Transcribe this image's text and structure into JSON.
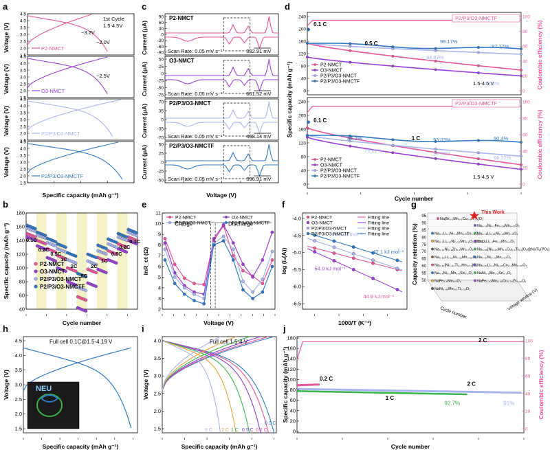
{
  "colors": {
    "p2": "#e8559b",
    "o3": "#9b3fd6",
    "p2p3o3": "#a8b4ee",
    "nmctf": "#2f78c4",
    "ce": "#e8559b",
    "band": "#f4f1c6",
    "green": "#3ab54a",
    "purple_full": "#8b3fd0"
  },
  "panels": {
    "a": {
      "letter": "a",
      "note_line1": "1st Cycle",
      "note_line2": "1.5-4.5V",
      "xlabel": "Specific capacity (mAh g⁻¹)",
      "ylabel": "Voltage (V)",
      "xticks": [
        "0",
        "50",
        "100",
        "150",
        "200"
      ],
      "yticks_top": [
        "4.5",
        "4.0",
        "3.5",
        "3.0",
        "2.5",
        "2.0",
        "1.5"
      ],
      "labels": [
        "P2-NMCT",
        "O3-NMCT",
        "P2/P3/O3-NMCT",
        "P2/P3/O3-NMCTF"
      ],
      "ann_32": "~3.2V",
      "ann_20": "~2.0V",
      "ann_25": "~2.5V"
    },
    "b": {
      "letter": "b",
      "xlabel": "Cycle number",
      "ylabel": "Specific capacity (mAh g⁻¹)",
      "xticks": [
        "0",
        "10",
        "20",
        "30",
        "40",
        "50"
      ],
      "yticks": [
        "40",
        "60",
        "80",
        "100",
        "120",
        "140",
        "160",
        "180"
      ],
      "rates": [
        "0.1C",
        "0.2C",
        "0.5C",
        "1C",
        "2C",
        "5C",
        "2C",
        "1C",
        "0.5C",
        "0.2C",
        "0.1C"
      ],
      "legend": [
        "P2-NMCT",
        "O3-NMCT",
        "P2/P3/O3-NMCT",
        "P2/P3/O3-NMCTF"
      ]
    },
    "c": {
      "letter": "c",
      "xlabel": "Voltage (V)",
      "ylabel": "Current (μA)",
      "xticks": [
        "1.5",
        "2.0",
        "2.5",
        "3.0",
        "3.5",
        "4.0",
        "4.5"
      ],
      "scan_rate": "Scan Rate: 0.05 mV s⁻¹",
      "subpanels": [
        {
          "name": "P2-NMCT",
          "polarization": "332.91 mV",
          "yticks": [
            "90",
            "60",
            "30",
            "0",
            "-30",
            "-60",
            "-90"
          ]
        },
        {
          "name": "O3-NMCT",
          "polarization": "661.52 mV",
          "yticks": [
            "50",
            "25",
            "0",
            "-25",
            "-50",
            "-75"
          ]
        },
        {
          "name": "P2/P3/O3-NMCT",
          "polarization": "498.14 mV",
          "yticks": [
            "70",
            "35",
            "0",
            "-35",
            "-70"
          ]
        },
        {
          "name": "P2/P3/O3-NMCTF",
          "polarization": "396.91 mV",
          "yticks": [
            "50",
            "25",
            "0",
            "-25",
            "-50"
          ]
        }
      ]
    },
    "d": {
      "letter": "d",
      "xlabel": "Cycle number",
      "ylabel": "Specific capacity (mAh g⁻¹)",
      "ylabel_right": "Coulombic efficiency (%)",
      "xticks": [
        "0",
        "50",
        "100",
        "150",
        "200"
      ],
      "top": {
        "rate_init": "0.1 C",
        "rate_main": "0.5 C",
        "ce_label": "P2/P3/O3-NMCTF",
        "window": "1.5-4.5 V",
        "pct": [
          "98.17%",
          "87.17%",
          "94.87%",
          "83.3%"
        ],
        "yticks": [
          "240",
          "200",
          "160",
          "120",
          "80",
          "40",
          "0"
        ],
        "ce_ticks": [
          "100",
          "80",
          "60",
          "40",
          "20",
          "0"
        ]
      },
      "bottom": {
        "rate_init": "0.1 C",
        "rate_main": "1 C",
        "ce_label": "P2/P3/O3-NMCTF",
        "window": "1.5-4.5 V",
        "pct": [
          "94.2%",
          "93.03%",
          "90.4%",
          "79.82%",
          "78.59%",
          "66.32%"
        ],
        "yticks": [
          "240",
          "200",
          "160",
          "120",
          "80",
          "40",
          "0"
        ],
        "ce_ticks": [
          "100",
          "80",
          "60",
          "40",
          "20",
          "0"
        ]
      },
      "legend": [
        "P2-NMCT",
        "O3-NMCT",
        "P2/P3/O3-NMCT",
        "P2/P3/O3-NMCTF"
      ]
    },
    "e": {
      "letter": "e",
      "xlabel": "Voltage (V)",
      "ylabel": "lnR_ct (Ω)",
      "xticks": [
        "2.5",
        "3.0",
        "3.5",
        "4.0",
        "4.5",
        "4.0",
        "3.5",
        "3.0",
        "2.5",
        "2.0",
        "1.5"
      ],
      "yticks": [
        "11",
        "10",
        "9",
        "8",
        "7",
        "6",
        "5",
        "4",
        "3",
        "2"
      ],
      "charge": "Charge",
      "discharge": "Discharge",
      "legend": [
        "P2-NMCT",
        "O3-NMCT",
        "P2/P3/O3-NMCT",
        "P2/P3/O3-NMCTF"
      ]
    },
    "f": {
      "letter": "f",
      "xlabel": "1000/T (K⁻¹)",
      "ylabel": "log (i₀(A))",
      "xticks": [
        "3.0",
        "3.1",
        "3.2",
        "3.3"
      ],
      "yticks": [
        "-4.0",
        "-4.5",
        "-5.0",
        "-5.5",
        "-6.0",
        "-6.5"
      ],
      "legend": [
        "P2-NMCT",
        "O3-NMCT",
        "P2/P3/O3-NMCT",
        "P2/P3/O3-NMCTF"
      ],
      "fit_legend": [
        "Fitting line",
        "Fitting line",
        "Fitting line",
        "Fitting line"
      ],
      "ea": [
        "46.8 kJ mol⁻¹",
        "42.1 kJ mol⁻¹",
        "54.0 kJ mol⁻¹",
        "44.9 kJ mol⁻¹"
      ]
    },
    "g": {
      "letter": "g",
      "this_work": "This Work",
      "zlabel": "Capacity retention (%)",
      "xlabel": "Cycle number",
      "ylabel": "Voltage window (V)",
      "zticks": [
        "95",
        "90",
        "85",
        "80",
        "75",
        "70",
        "65",
        "60",
        "55",
        "50"
      ],
      "materials": [
        "Na[Ni₀.₂Mn₀.₅Cu₀.₁Ti₀.₂]O₂",
        "Na₀.₇₈Ni₀.₂Fe₀.₃₈Mn₀.₄₂O₂",
        "Na₀.₇Li₀.₁Ni₀.₂Mn₀.₅Co₀.₂O₂",
        "Na₀.₇₈Li₀.₁₈Ni₀.₂₅Mn₀.₆O₂",
        "Na₀.₇Li₀.₁₂Ni₀.₂₅Mn₀.₆O₂@ZnO",
        "Na₀.₈Li₀.₃Fe₀.₂Mn₀.₆O₂",
        "Na₀.₆₇Ni₀.₂Zn₀.₁Mn₀.₇O₂",
        "Na₀.₈₅[Ni₀.₂₅Mn₀.₅Cu₀.₁Ti₀.₁]O₂@NaTi₂(PO₄)₃",
        "Na₀.₈₅Li₀.₁₂Ni₀.₂₂Mn₀.₆₆O₂",
        "Na₀.₆₇Ni₀.₃₃Mn₀.₆₇O₂",
        "Na₀.₆₇[Ni₀.₃₃Ti₀.₁Mn₀.₅₇]O₂",
        "Na₀.₈₃Li₀.₁Ni₀.₂₅Co₀.₂Mn₀.₄₅O₂",
        "Na₀.₆Ni₀.₂Mn₀.₆Sb₀.₂O₂",
        "NaNi₀.₅Mn₀.₂Sn₀.₃O₂",
        "NaFe₀.₅Mn₀.₅O₂",
        "NaFe₀.₃₃Mn₀.₃₃Cu₀.₃₃Zr₀.₀₂O₂",
        "NaNi₀.₄₅Mn₀.₅Ti₀.₀₅O₂"
      ]
    },
    "h": {
      "letter": "h",
      "title": "Full cell  0.1C@1.5-4.19 V",
      "xlabel": "Specific capacity (mAh g⁻¹)",
      "ylabel": "Voltage (V)",
      "xticks": [
        "0",
        "20",
        "40",
        "60",
        "80",
        "100",
        "120"
      ],
      "yticks": [
        "4.5",
        "4.0",
        "3.5",
        "3.0",
        "2.5",
        "2.0",
        "1.5"
      ],
      "photo_text": "NEU"
    },
    "i": {
      "letter": "i",
      "title": "Full cell  1.5-4 V",
      "xlabel": "Specific capacity (mAh g⁻¹)",
      "ylabel": "Voltage (V)",
      "xticks": [
        "0",
        "20",
        "40",
        "60",
        "80",
        "100"
      ],
      "yticks": [
        "4.0",
        "3.5",
        "3.0",
        "2.5",
        "2.0",
        "1.5"
      ],
      "rates": [
        "0.1 C",
        "0.2 C",
        "0.5 C",
        "1 C",
        "2 C",
        "5 C",
        "2 C",
        "1 C"
      ]
    },
    "j": {
      "letter": "j",
      "xlabel": "Cycle number",
      "ylabel": "Specific capacity (mAh g⁻¹)",
      "ylabel_right": "Coulombic efficiency (%)",
      "xticks": [
        "0",
        "40",
        "80",
        "120",
        "160",
        "200"
      ],
      "yticks": [
        "180",
        "160",
        "140",
        "120",
        "100",
        "80",
        "60",
        "40",
        "20",
        "0"
      ],
      "ce_ticks": [
        "100",
        "80",
        "60",
        "40",
        "20",
        "0"
      ],
      "rate_02": "0.2 C",
      "rate_1": "1 C",
      "rate_2": "2 C",
      "rate_2ce": "2 C",
      "pct_927": "92.7%",
      "pct_91": "91%"
    }
  },
  "chart_data": [
    {
      "type": "line",
      "title": "a: 1st cycle charge/discharge curves, 1.5-4.5 V",
      "xlabel": "Specific capacity (mAh g⁻¹)",
      "ylabel": "Voltage (V)",
      "xlim": [
        0,
        200
      ],
      "ylim": [
        1.5,
        4.5
      ],
      "series": [
        {
          "name": "P2-NMCT",
          "charge_capacity": 120,
          "discharge_capacity": 150
        },
        {
          "name": "O3-NMCT",
          "charge_capacity": 150,
          "discharge_capacity": 150
        },
        {
          "name": "P2/P3/O3-NMCT",
          "charge_capacity": 175,
          "discharge_capacity": 160
        },
        {
          "name": "P2/P3/O3-NMCTF",
          "charge_capacity": 170,
          "discharge_capacity": 178
        }
      ]
    },
    {
      "type": "scatter",
      "title": "b: rate performance",
      "xlabel": "Cycle number",
      "ylabel": "Specific capacity (mAh g⁻¹)",
      "xlim": [
        0,
        55
      ],
      "ylim": [
        40,
        180
      ],
      "rates": [
        "0.1C",
        "0.2C",
        "0.5C",
        "1C",
        "2C",
        "5C",
        "2C",
        "1C",
        "0.5C",
        "0.2C",
        "0.1C"
      ],
      "series": [
        {
          "name": "P2-NMCT",
          "values": [
            150,
            140,
            128,
            118,
            100,
            58,
            98,
            115,
            125,
            135,
            145
          ]
        },
        {
          "name": "O3-NMCT",
          "values": [
            145,
            132,
            115,
            100,
            80,
            42,
            78,
            98,
            112,
            128,
            140
          ]
        },
        {
          "name": "P2/P3/O3-NMCT",
          "values": [
            158,
            148,
            137,
            128,
            112,
            72,
            110,
            125,
            135,
            145,
            152
          ]
        },
        {
          "name": "P2/P3/O3-NMCTF",
          "values": [
            162,
            152,
            143,
            135,
            122,
            92,
            120,
            133,
            142,
            150,
            156
          ]
        }
      ]
    },
    {
      "type": "line",
      "title": "c: CV curves, scan rate 0.05 mV s⁻¹",
      "xlabel": "Voltage (V)",
      "ylabel": "Current (μA)",
      "xlim": [
        1.5,
        4.5
      ],
      "polarization_mV": {
        "P2-NMCT": 332.91,
        "O3-NMCT": 661.52,
        "P2/P3/O3-NMCT": 498.14,
        "P2/P3/O3-NMCTF": 396.91
      }
    },
    {
      "type": "line",
      "title": "d: cycling performance at 0.5 C and 1 C",
      "xlabel": "Cycle number",
      "ylabel": "Specific capacity (mAh g⁻¹)",
      "xlim": [
        0,
        200
      ],
      "ylim": [
        0,
        240
      ],
      "retention_0p5C": {
        "P2/P3/O3-NMCTF": "98.17%/87.17%",
        "P2/P3/O3-NMCT": "94.87%/83.3%"
      },
      "retention_1C": {
        "P2/P3/O3-NMCTF": "94.2%/93.03%/90.4%",
        "P2/P3/O3-NMCT": "79.82%/78.59%/66.32%"
      }
    },
    {
      "type": "line",
      "title": "e: lnRct vs voltage (charge & discharge)",
      "xlabel": "Voltage (V)",
      "ylabel": "lnRct (Ω)",
      "ylim": [
        2,
        11
      ]
    },
    {
      "type": "scatter",
      "title": "f: Arrhenius plots",
      "xlabel": "1000/T (K⁻¹)",
      "ylabel": "log (i0(A))",
      "xlim": [
        2.95,
        3.38
      ],
      "ylim": [
        -6.6,
        -4.0
      ],
      "activation_energy_kJ_mol": {
        "P2/P3/O3-NMCTF": 42.1,
        "P2/P3/O3-NMCT": 46.8,
        "P2-NMCT": 44.9,
        "O3-NMCT": 54.0
      }
    },
    {
      "type": "line",
      "title": "h: full cell 0.1C @1.5-4.19 V",
      "xlabel": "Specific capacity (mAh g⁻¹)",
      "ylabel": "Voltage (V)",
      "xlim": [
        0,
        125
      ],
      "ylim": [
        1.5,
        4.5
      ],
      "capacity": 118
    },
    {
      "type": "line",
      "title": "i: full cell rate curves 1.5-4 V",
      "xlabel": "Specific capacity (mAh g⁻¹)",
      "ylabel": "Voltage (V)",
      "xlim": [
        0,
        100
      ],
      "ylim": [
        1.5,
        4.0
      ],
      "rates": [
        "0.1 C",
        "0.2 C",
        "0.5 C",
        "1 C",
        "2 C",
        "5 C"
      ],
      "capacities": [
        100,
        95,
        88,
        78,
        66,
        52
      ]
    },
    {
      "type": "line",
      "title": "j: full cell cycling",
      "xlabel": "Cycle number",
      "ylabel": "Specific capacity (mAh g⁻¹)",
      "xlim": [
        0,
        200
      ],
      "ylim": [
        0,
        180
      ],
      "series": [
        {
          "name": "0.2 C",
          "start": 90,
          "end": 92
        },
        {
          "name": "1 C",
          "start": 78,
          "end": 70,
          "retention": "92.7%"
        },
        {
          "name": "2 C",
          "start": 82,
          "end": 75,
          "retention": "91%"
        }
      ]
    }
  ]
}
